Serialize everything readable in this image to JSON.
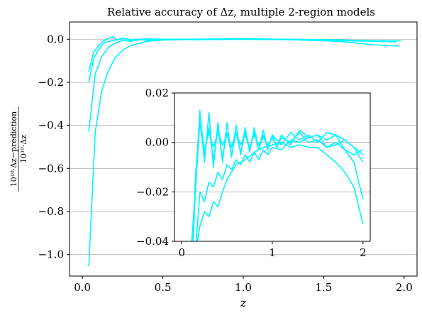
{
  "chart_data": [
    {
      "type": "line",
      "title": "Relative accuracy of Δz, multiple 2-region models",
      "xlabel": "z",
      "ylabel_numerator": "10¹⁰·Δz−prediction",
      "ylabel_denominator": "10¹⁰·Δz",
      "xlim": [
        -0.08,
        2.08
      ],
      "ylim": [
        -1.1,
        0.08
      ],
      "xticks": [
        "0.0",
        "0.5",
        "1.0",
        "1.5",
        "2.0"
      ],
      "xtick_values": [
        0.0,
        0.5,
        1.0,
        1.5,
        2.0
      ],
      "yticks": [
        "0.0",
        "−0.2",
        "−0.4",
        "−0.6",
        "−0.8",
        "−1.0"
      ],
      "ytick_values": [
        0.0,
        -0.2,
        -0.4,
        -0.6,
        -0.8,
        -1.0
      ],
      "grid": "horizontal",
      "color": "#00f5ff",
      "series": [
        {
          "x": [
            0.04,
            0.08,
            0.12,
            0.16,
            0.2,
            0.25,
            0.3,
            0.4,
            0.5,
            0.7,
            1.0,
            1.3,
            1.6,
            1.8,
            1.97
          ],
          "y": [
            -1.055,
            -0.43,
            -0.24,
            -0.15,
            -0.09,
            -0.05,
            -0.03,
            -0.01,
            -0.004,
            0.0,
            0.0,
            -0.002,
            -0.01,
            -0.025,
            -0.032
          ]
        },
        {
          "x": [
            0.04,
            0.08,
            0.12,
            0.16,
            0.2,
            0.25,
            0.3,
            0.35,
            0.4,
            0.5,
            0.7,
            1.0,
            1.3,
            1.6,
            1.9
          ],
          "y": [
            -0.43,
            -0.16,
            -0.08,
            -0.04,
            -0.02,
            -0.005,
            -0.01,
            0.0,
            -0.005,
            0.0,
            -0.002,
            0.0,
            0.0,
            -0.003,
            -0.01
          ]
        },
        {
          "x": [
            0.04,
            0.07,
            0.1,
            0.13,
            0.16,
            0.2,
            0.25,
            0.3,
            0.4,
            0.6,
            1.0,
            1.4,
            1.7,
            1.95
          ],
          "y": [
            -0.2,
            -0.09,
            -0.05,
            -0.02,
            -0.01,
            -0.005,
            0.005,
            -0.005,
            0.0,
            0.0,
            0.002,
            -0.004,
            -0.008,
            -0.012
          ]
        },
        {
          "x": [
            0.04,
            0.07,
            0.1,
            0.13,
            0.16,
            0.19,
            0.22,
            0.26,
            0.3,
            0.4,
            0.6,
            1.0,
            1.4,
            1.7,
            1.98
          ],
          "y": [
            -0.15,
            -0.06,
            -0.03,
            -0.01,
            0.005,
            0.01,
            -0.003,
            0.004,
            -0.002,
            0.002,
            -0.002,
            0.003,
            -0.002,
            -0.006,
            -0.008
          ]
        }
      ]
    },
    {
      "type": "line",
      "xlim": [
        -0.08,
        2.08
      ],
      "ylim": [
        -0.04,
        0.02
      ],
      "xticks": [
        "0",
        "1",
        "2"
      ],
      "xtick_values": [
        0,
        1,
        2
      ],
      "yticks": [
        "0.02",
        "0.00",
        "−0.02",
        "−0.04"
      ],
      "ytick_values": [
        0.02,
        0.0,
        -0.02,
        -0.04
      ],
      "grid": "horizontal",
      "color": "#00f5ff",
      "series": [
        {
          "x": [
            0.15,
            0.2,
            0.25,
            0.3,
            0.35,
            0.4,
            0.45,
            0.5,
            0.55,
            0.6,
            0.7,
            0.8,
            0.9,
            1.0,
            1.1,
            1.2,
            1.3,
            1.4,
            1.5,
            1.6,
            1.7,
            1.8,
            1.9,
            2.0
          ],
          "y": [
            -0.045,
            -0.034,
            -0.028,
            -0.03,
            -0.024,
            -0.026,
            -0.02,
            -0.015,
            -0.012,
            -0.009,
            -0.007,
            -0.004,
            -0.002,
            -0.001,
            0.0,
            -0.002,
            -0.001,
            -0.002,
            -0.002,
            -0.005,
            -0.008,
            -0.012,
            -0.018,
            -0.033
          ]
        },
        {
          "x": [
            0.15,
            0.2,
            0.25,
            0.3,
            0.35,
            0.4,
            0.45,
            0.5,
            0.55,
            0.6,
            0.65,
            0.7,
            0.75,
            0.8,
            0.85,
            0.9,
            0.95,
            1.0,
            1.1,
            1.2,
            1.3,
            1.4,
            1.5,
            1.6,
            1.7,
            1.8,
            1.9,
            2.0
          ],
          "y": [
            -0.045,
            -0.02,
            -0.024,
            -0.016,
            -0.018,
            -0.012,
            -0.015,
            -0.009,
            -0.011,
            -0.007,
            -0.009,
            -0.005,
            -0.008,
            -0.004,
            -0.007,
            -0.003,
            -0.005,
            -0.002,
            -0.003,
            0.001,
            0.0,
            0.002,
            0.003,
            0.001,
            0.003,
            -0.003,
            -0.008,
            -0.023
          ]
        },
        {
          "x": [
            0.1,
            0.15,
            0.2,
            0.25,
            0.3,
            0.35,
            0.4,
            0.45,
            0.5,
            0.55,
            0.6,
            0.65,
            0.7,
            0.75,
            0.8,
            0.85,
            0.9,
            0.95,
            1.0,
            1.1,
            1.2,
            1.3,
            1.4,
            1.5,
            1.6,
            1.7,
            1.8,
            1.9,
            2.0
          ],
          "y": [
            -0.045,
            -0.02,
            0.013,
            -0.008,
            0.012,
            -0.01,
            0.008,
            -0.008,
            0.008,
            -0.006,
            0.007,
            -0.005,
            0.006,
            -0.004,
            0.006,
            -0.003,
            0.005,
            -0.003,
            0.003,
            -0.001,
            0.004,
            0.001,
            0.003,
            0.0,
            0.004,
            0.003,
            0.001,
            -0.002,
            -0.005
          ]
        },
        {
          "x": [
            0.12,
            0.15,
            0.2,
            0.25,
            0.3,
            0.35,
            0.4,
            0.45,
            0.5,
            0.55,
            0.6,
            0.65,
            0.7,
            0.75,
            0.8,
            0.85,
            0.9,
            0.95,
            1.0,
            1.05,
            1.1,
            1.2,
            1.3,
            1.4,
            1.5,
            1.6,
            1.7,
            1.8,
            1.9,
            2.0
          ],
          "y": [
            -0.045,
            -0.02,
            0.008,
            -0.005,
            0.006,
            -0.007,
            0.005,
            -0.006,
            0.004,
            -0.005,
            0.004,
            -0.004,
            0.004,
            -0.003,
            0.004,
            -0.003,
            0.003,
            -0.002,
            0.003,
            -0.002,
            0.003,
            -0.001,
            0.005,
            0.002,
            0.003,
            -0.002,
            -0.001,
            0.001,
            -0.002,
            -0.008
          ]
        },
        {
          "x": [
            0.12,
            0.15,
            0.2,
            0.25,
            0.3,
            0.35,
            0.4,
            0.45,
            0.5,
            0.55,
            0.6,
            0.65,
            0.7,
            0.75,
            0.8,
            0.85,
            0.9,
            0.95,
            1.0,
            1.05,
            1.1,
            1.2,
            1.3,
            1.4,
            1.5,
            1.6,
            1.7,
            1.8,
            1.9,
            2.0
          ],
          "y": [
            -0.045,
            -0.015,
            0.01,
            -0.003,
            0.004,
            -0.002,
            0.004,
            -0.001,
            0.003,
            -0.002,
            0.004,
            -0.001,
            0.003,
            -0.002,
            0.003,
            -0.001,
            0.002,
            -0.001,
            0.002,
            -0.002,
            0.002,
            0.0,
            0.004,
            0.0,
            0.001,
            -0.002,
            0.0,
            -0.003,
            -0.005,
            -0.003
          ]
        }
      ]
    }
  ]
}
